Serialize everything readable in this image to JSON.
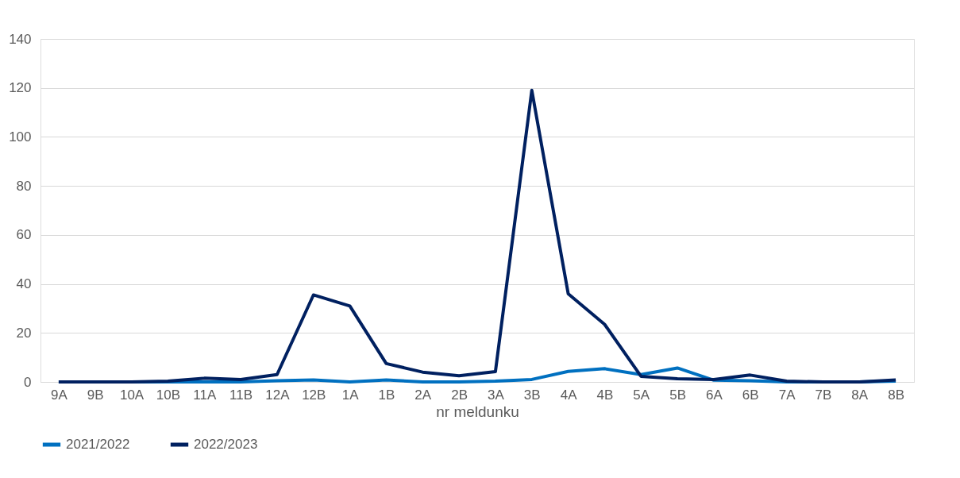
{
  "chart_data": {
    "type": "line",
    "xlabel": "nr meldunku",
    "categories": [
      "9A",
      "9B",
      "10A",
      "10B",
      "11A",
      "11B",
      "12A",
      "12B",
      "1A",
      "1B",
      "2A",
      "2B",
      "3A",
      "3B",
      "4A",
      "4B",
      "5A",
      "5B",
      "6A",
      "6B",
      "7A",
      "7B",
      "8A",
      "8B"
    ],
    "series": [
      {
        "name": "2021/2022",
        "color": "#0070c0",
        "values": [
          0,
          0,
          0,
          0,
          0,
          0,
          0.5,
          0.8,
          0,
          0.8,
          0,
          0,
          0.3,
          1,
          4.3,
          5.4,
          3,
          5.7,
          0.7,
          0.5,
          0,
          0,
          0,
          0.3
        ]
      },
      {
        "name": "2022/2023",
        "color": "#002060",
        "values": [
          0,
          0,
          0,
          0.3,
          1.5,
          1,
          3,
          35.5,
          31,
          7.5,
          4,
          2.5,
          4.2,
          119,
          36,
          23.5,
          2.3,
          1.3,
          1,
          2.8,
          0.3,
          0,
          0,
          0.8
        ]
      }
    ],
    "ylim": [
      0,
      140
    ],
    "yticks": [
      0,
      20,
      40,
      60,
      80,
      100,
      120,
      140
    ],
    "grid": "y",
    "legend": "bottom",
    "line_style": "solid",
    "marker": "none"
  }
}
